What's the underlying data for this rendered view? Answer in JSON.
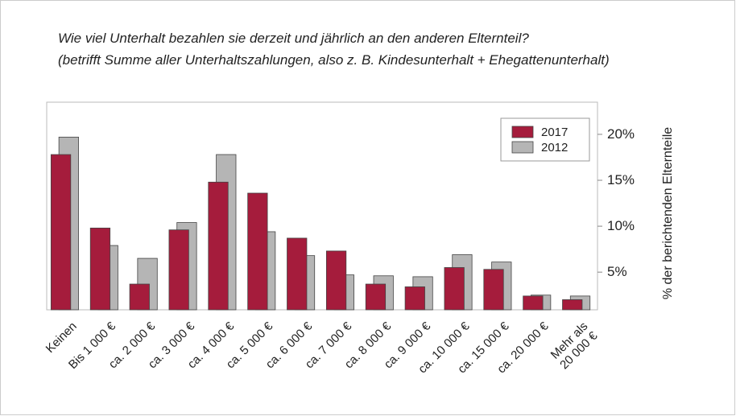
{
  "chart_data": {
    "type": "bar",
    "title": "Wie viel Unterhalt bezahlen sie derzeit und jährlich an den anderen Elternteil?",
    "subtitle": "(betrifft Summe aller Unterhaltszahlungen, also z. B. Kindesunterhalt + Ehegattenunterhalt)",
    "y_label": "% der berichtenden Elternteile",
    "categories": [
      "Keinen",
      "Bis 1 000 €",
      "ca. 2 000 €",
      "ca. 3 000 €",
      "ca. 4 000 €",
      "ca. 5 000 €",
      "ca. 6 000 €",
      "ca. 7 000 €",
      "ca. 8 000 €",
      "ca. 9 000 €",
      "ca. 10 000 €",
      "ca. 15 000 €",
      "ca. 20 000 €",
      "Mehr als\n20 000 €"
    ],
    "series": [
      {
        "name": "2017",
        "color": "#a51c3c",
        "values": [
          17.8,
          9.8,
          3.7,
          9.6,
          14.8,
          13.6,
          8.7,
          7.3,
          3.7,
          3.4,
          5.5,
          5.3,
          2.4,
          2.0
        ]
      },
      {
        "name": "2012",
        "color": "#b5b5b5",
        "values": [
          19.7,
          7.9,
          6.5,
          10.4,
          17.8,
          9.4,
          6.8,
          4.7,
          4.6,
          4.5,
          6.9,
          6.1,
          2.5,
          2.4
        ]
      }
    ],
    "ylim": [
      0.9,
      23.5
    ],
    "yticks": [
      {
        "value": 5,
        "label": "5%"
      },
      {
        "value": 10,
        "label": "10%"
      },
      {
        "value": 15,
        "label": "15%"
      },
      {
        "value": 20,
        "label": "20%"
      }
    ],
    "legend": "upper right"
  }
}
